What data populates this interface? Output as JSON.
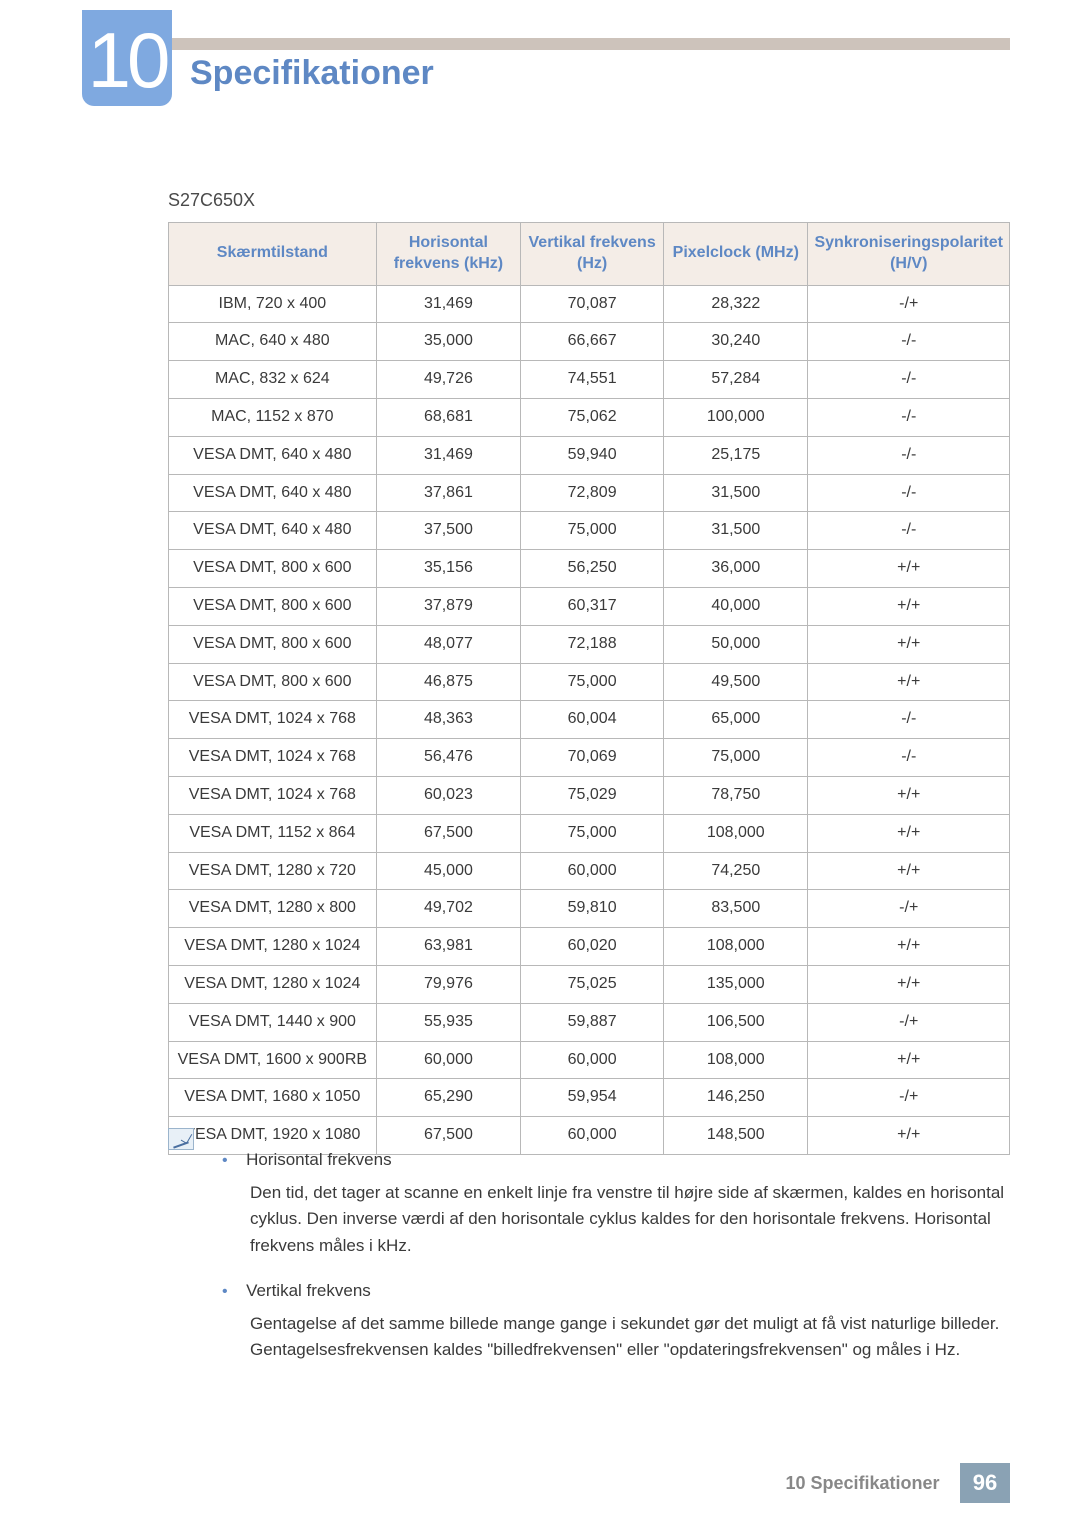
{
  "chapterNumber": "10",
  "pageTitle": "Specifikationer",
  "modelName": "S27C650X",
  "colors": {
    "accent": "#5e88c4",
    "badge": "#7fa9e0",
    "headerBg": "#f4ede7",
    "topBar": "#cdc3bb",
    "footerBox": "#8aa2b4"
  },
  "table": {
    "columns": [
      "Skærmtilstand",
      "Horisontal frekvens (kHz)",
      "Vertikal frekvens (Hz)",
      "Pixelclock (MHz)",
      "Synkroniseringspolaritet (H/V)"
    ],
    "rows": [
      [
        "IBM, 720 x 400",
        "31,469",
        "70,087",
        "28,322",
        "-/+"
      ],
      [
        "MAC, 640 x 480",
        "35,000",
        "66,667",
        "30,240",
        "-/-"
      ],
      [
        "MAC, 832 x 624",
        "49,726",
        "74,551",
        "57,284",
        "-/-"
      ],
      [
        "MAC, 1152 x 870",
        "68,681",
        "75,062",
        "100,000",
        "-/-"
      ],
      [
        "VESA DMT, 640 x 480",
        "31,469",
        "59,940",
        "25,175",
        "-/-"
      ],
      [
        "VESA DMT, 640 x 480",
        "37,861",
        "72,809",
        "31,500",
        "-/-"
      ],
      [
        "VESA DMT, 640 x 480",
        "37,500",
        "75,000",
        "31,500",
        "-/-"
      ],
      [
        "VESA DMT, 800 x 600",
        "35,156",
        "56,250",
        "36,000",
        "+/+"
      ],
      [
        "VESA DMT, 800 x 600",
        "37,879",
        "60,317",
        "40,000",
        "+/+"
      ],
      [
        "VESA DMT, 800 x 600",
        "48,077",
        "72,188",
        "50,000",
        "+/+"
      ],
      [
        "VESA DMT, 800 x 600",
        "46,875",
        "75,000",
        "49,500",
        "+/+"
      ],
      [
        "VESA DMT, 1024 x 768",
        "48,363",
        "60,004",
        "65,000",
        "-/-"
      ],
      [
        "VESA DMT, 1024 x 768",
        "56,476",
        "70,069",
        "75,000",
        "-/-"
      ],
      [
        "VESA DMT, 1024 x 768",
        "60,023",
        "75,029",
        "78,750",
        "+/+"
      ],
      [
        "VESA DMT, 1152 x 864",
        "67,500",
        "75,000",
        "108,000",
        "+/+"
      ],
      [
        "VESA DMT, 1280 x 720",
        "45,000",
        "60,000",
        "74,250",
        "+/+"
      ],
      [
        "VESA DMT, 1280 x 800",
        "49,702",
        "59,810",
        "83,500",
        "-/+"
      ],
      [
        "VESA DMT, 1280 x 1024",
        "63,981",
        "60,020",
        "108,000",
        "+/+"
      ],
      [
        "VESA DMT, 1280 x 1024",
        "79,976",
        "75,025",
        "135,000",
        "+/+"
      ],
      [
        "VESA DMT, 1440 x 900",
        "55,935",
        "59,887",
        "106,500",
        "-/+"
      ],
      [
        "VESA DMT, 1600 x 900RB",
        "60,000",
        "60,000",
        "108,000",
        "+/+"
      ],
      [
        "VESA DMT, 1680 x 1050",
        "65,290",
        "59,954",
        "146,250",
        "-/+"
      ],
      [
        "VESA DMT, 1920 x 1080",
        "67,500",
        "60,000",
        "148,500",
        "+/+"
      ]
    ]
  },
  "notes": [
    {
      "title": "Horisontal frekvens",
      "body": "Den tid, det tager at scanne en enkelt linje fra venstre til højre side af skærmen, kaldes en horisontal cyklus. Den inverse værdi af den horisontale cyklus kaldes for den horisontale frekvens. Horisontal frekvens måles i kHz."
    },
    {
      "title": "Vertikal frekvens",
      "body": "Gentagelse af det samme billede mange gange i sekundet gør det muligt at få vist naturlige billeder. Gentagelsesfrekvensen kaldes \"billedfrekvensen\" eller \"opdateringsfrekvensen\" og måles i Hz."
    }
  ],
  "footer": {
    "chapterRef": "10",
    "sectionTitle": "Specifikationer",
    "pageNumber": "96"
  }
}
